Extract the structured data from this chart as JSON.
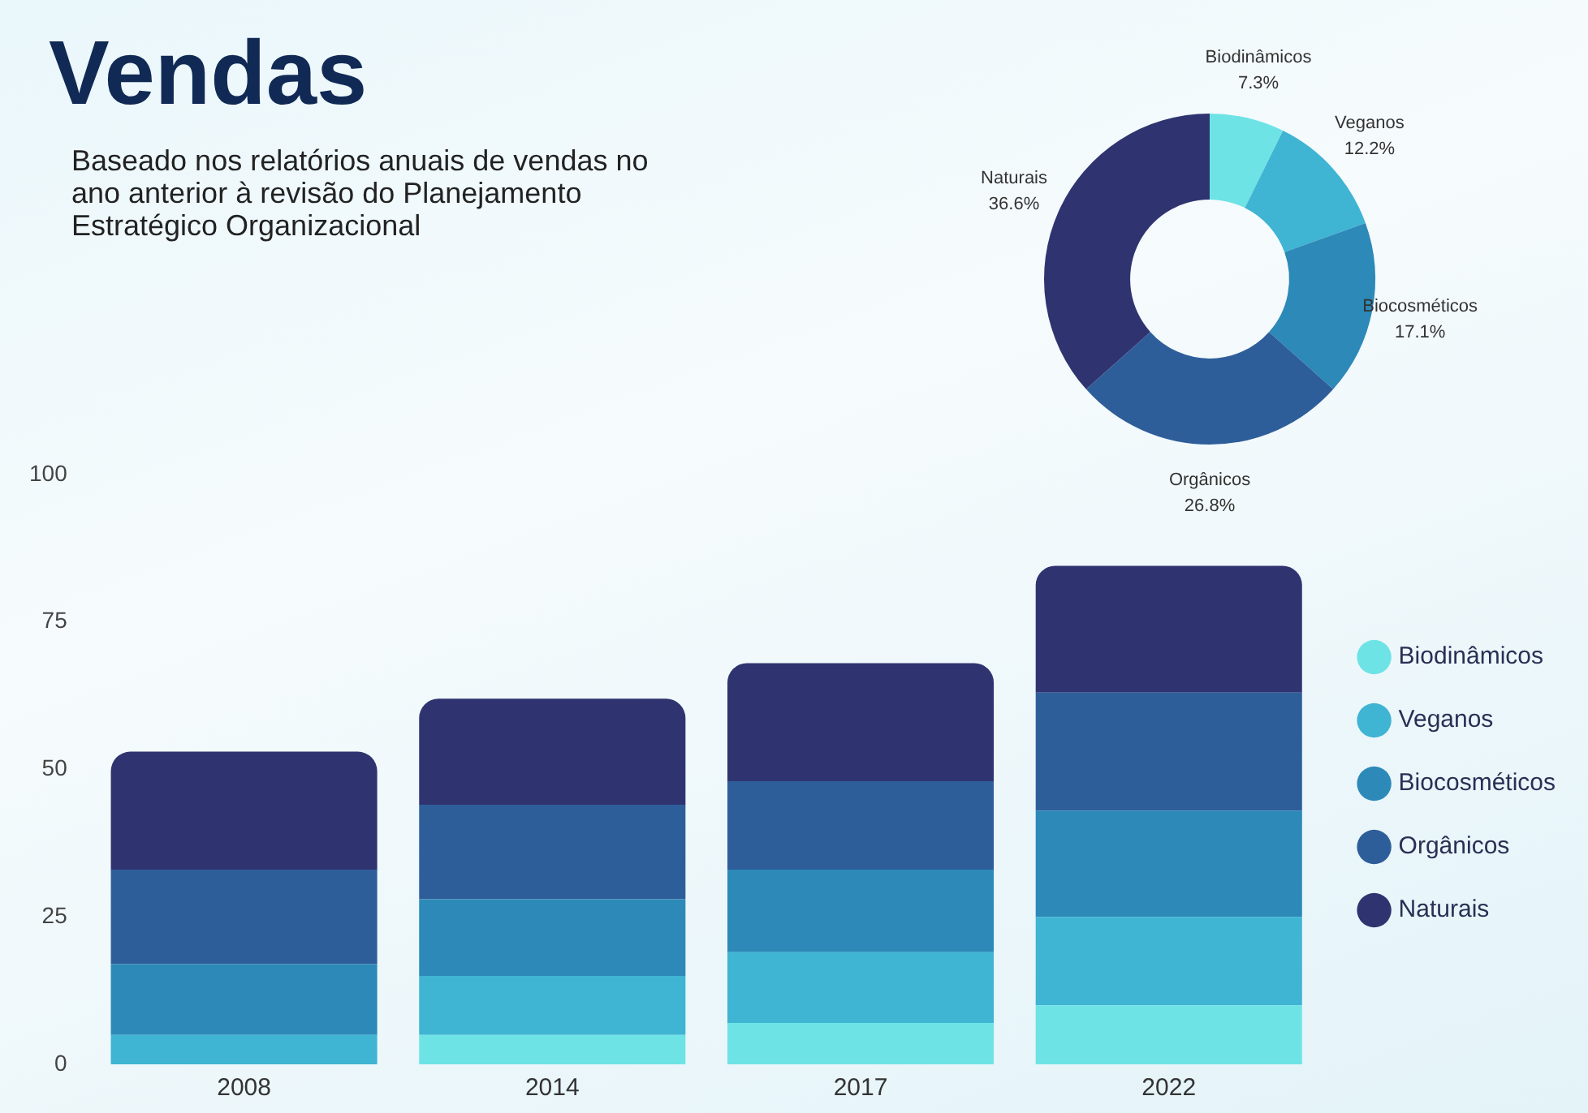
{
  "chart_data": [
    {
      "type": "bar",
      "title": "Vendas",
      "subtitle": "Baseado nos relatórios anuais de vendas no ano anterior à revisão do Planejamento Estratégico Organizacional",
      "categories": [
        "2008",
        "2014",
        "2017",
        "2022"
      ],
      "stacked": true,
      "ylim": [
        0,
        100
      ],
      "yticks": [
        0,
        25,
        50,
        75,
        100
      ],
      "grid": false,
      "legend": "right",
      "series": [
        {
          "name": "Biodinâmicos",
          "color": "#6ee3e6",
          "values": [
            0,
            5,
            7,
            10
          ]
        },
        {
          "name": "Veganos",
          "color": "#3fb4d3",
          "values": [
            5,
            10,
            12,
            15
          ]
        },
        {
          "name": "Biocosméticos",
          "color": "#2c89b8",
          "values": [
            12,
            13,
            14,
            18
          ]
        },
        {
          "name": "Orgânicos",
          "color": "#2e5e9a",
          "values": [
            16,
            16,
            15,
            20
          ]
        },
        {
          "name": "Naturais",
          "color": "#2f3470",
          "values": [
            20,
            18,
            20,
            21.5
          ]
        }
      ]
    },
    {
      "type": "donut",
      "categories": [
        "Biodinâmicos",
        "Veganos",
        "Biocosméticos",
        "Orgânicos",
        "Naturais"
      ],
      "values": [
        7.3,
        12.2,
        17.1,
        26.8,
        36.6
      ],
      "value_labels": [
        "7.3%",
        "12.2%",
        "17.1%",
        "26.8%",
        "36.6%"
      ],
      "colors": [
        "#6ee3e6",
        "#3fb4d3",
        "#2c89b8",
        "#2e5e9a",
        "#2f3470"
      ],
      "legend": false
    }
  ]
}
